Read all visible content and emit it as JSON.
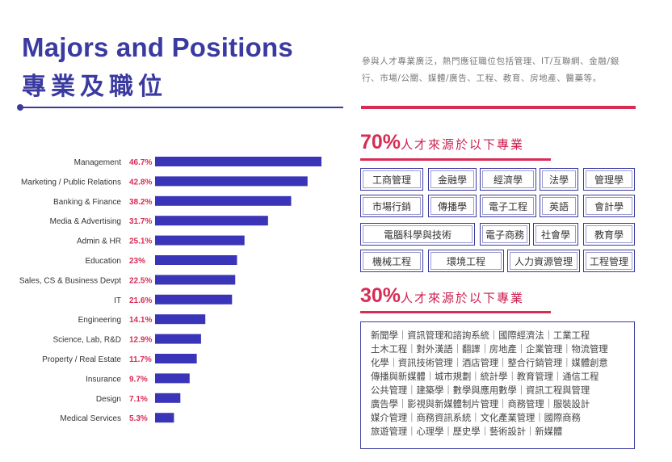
{
  "header": {
    "title_en": "Majors and Positions",
    "title_zh": "專業及職位",
    "intro": "參與人才專業廣泛，熱門應征職位包括管理、IT/互聯網、金融/銀行、市場/公關、媒體/廣告、工程、教育、房地產、醫藥等。"
  },
  "section70": {
    "percent": "70%",
    "label": "人才來源於以下專業",
    "majors": [
      "工商管理",
      "金融學",
      "經濟學",
      "法學",
      "管理學",
      "市場行銷",
      "傳播學",
      "電子工程",
      "英語",
      "會計學",
      "電腦科學與技術",
      "電子商務",
      "社會學",
      "教育學",
      "機械工程",
      "環境工程",
      "人力資源管理",
      "工程管理"
    ]
  },
  "section30": {
    "percent": "30%",
    "label": "人才來源於以下專業",
    "lines": [
      "新聞學｜資訊管理和諮詢系統｜國際經濟法｜工業工程",
      "土木工程｜對外漢語｜翻譯｜房地產｜企業管理｜物流管理",
      "化學｜資訊技術管理｜酒店管理｜整合行銷管理｜媒體創意",
      "傳播與新媒體｜城市規劃｜統計學｜教育管理｜通信工程",
      "公共管理｜建築學｜數學與應用數學｜資訊工程與管理",
      "廣告學｜影視與新媒體制片管理｜商務管理｜服裝設計",
      "媒介管理｜商務資訊系統｜文化產業管理｜國際商務",
      "旅遊管理｜心理學｜歷史學｜藝術設計｜新媒體"
    ]
  },
  "chart_data": {
    "type": "bar",
    "orientation": "horizontal",
    "categories": [
      "Management",
      "Marketing / Public Relations",
      "Banking & Finance",
      "Media & Advertising",
      "Admin & HR",
      "Education",
      "Sales, CS & Business Devpt",
      "IT",
      "Engineering",
      "Science, Lab, R&D",
      "Property / Real Estate",
      "Insurance",
      "Design",
      "Medical Services"
    ],
    "values": [
      46.7,
      42.8,
      38.2,
      31.7,
      25.1,
      23,
      22.5,
      21.6,
      14.1,
      12.9,
      11.7,
      9.7,
      7.1,
      5.3
    ],
    "value_labels": [
      "46.7%",
      "42.8%",
      "38.2%",
      "31.7%",
      "25.1%",
      "23%",
      "22.5%",
      "21.6%",
      "14.1%",
      "12.9%",
      "11.7%",
      "9.7%",
      "7.1%",
      "5.3%"
    ],
    "xlim": [
      0,
      46.7
    ],
    "bar_color": "#3a35b8",
    "label_color": "#d82c55",
    "grid": false
  }
}
